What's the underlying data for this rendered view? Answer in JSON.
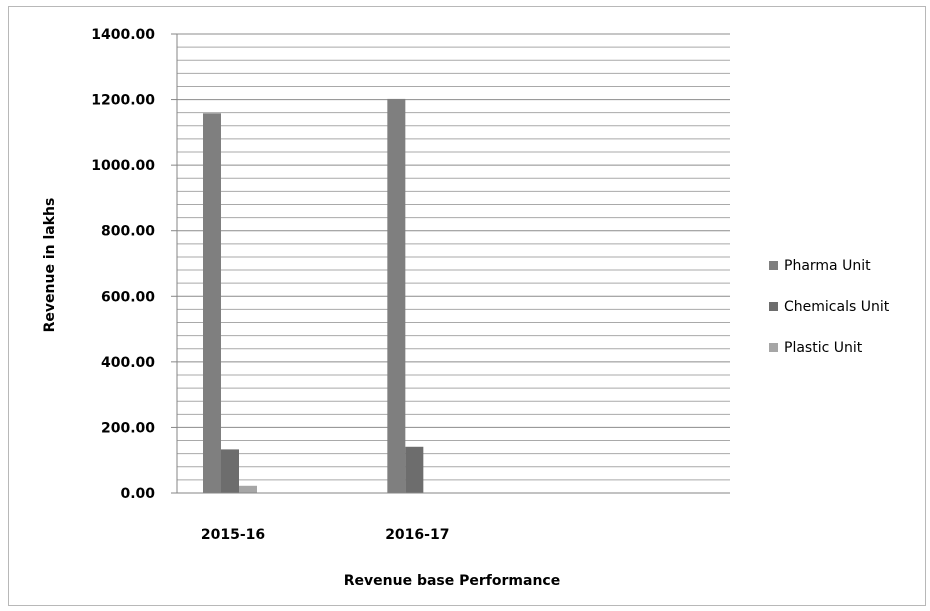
{
  "chart_data": {
    "type": "bar",
    "title": "",
    "xlabel": "Revenue base Performance",
    "ylabel": "Revenue in lakhs",
    "categories": [
      "2015-16",
      "2016-17",
      ""
    ],
    "series": [
      {
        "name": "Pharma Unit",
        "color": "#7f7f7f",
        "values": [
          1158,
          1202,
          0
        ]
      },
      {
        "name": "Chemicals Unit",
        "color": "#6d6d6d",
        "values": [
          133,
          141,
          0
        ]
      },
      {
        "name": "Plastic Unit",
        "color": "#a6a6a6",
        "values": [
          22,
          0,
          0
        ]
      }
    ],
    "ylim": [
      0,
      1400
    ],
    "y_ticks": [
      0,
      200,
      400,
      600,
      800,
      1000,
      1200,
      1400
    ],
    "y_tick_labels": [
      "0.00",
      "200.00",
      "400.00",
      "600.00",
      "800.00",
      "1000.00",
      "1200.00",
      "1400.00"
    ],
    "minor_gridline_step": 40,
    "grid": true,
    "legend_position": "right"
  }
}
